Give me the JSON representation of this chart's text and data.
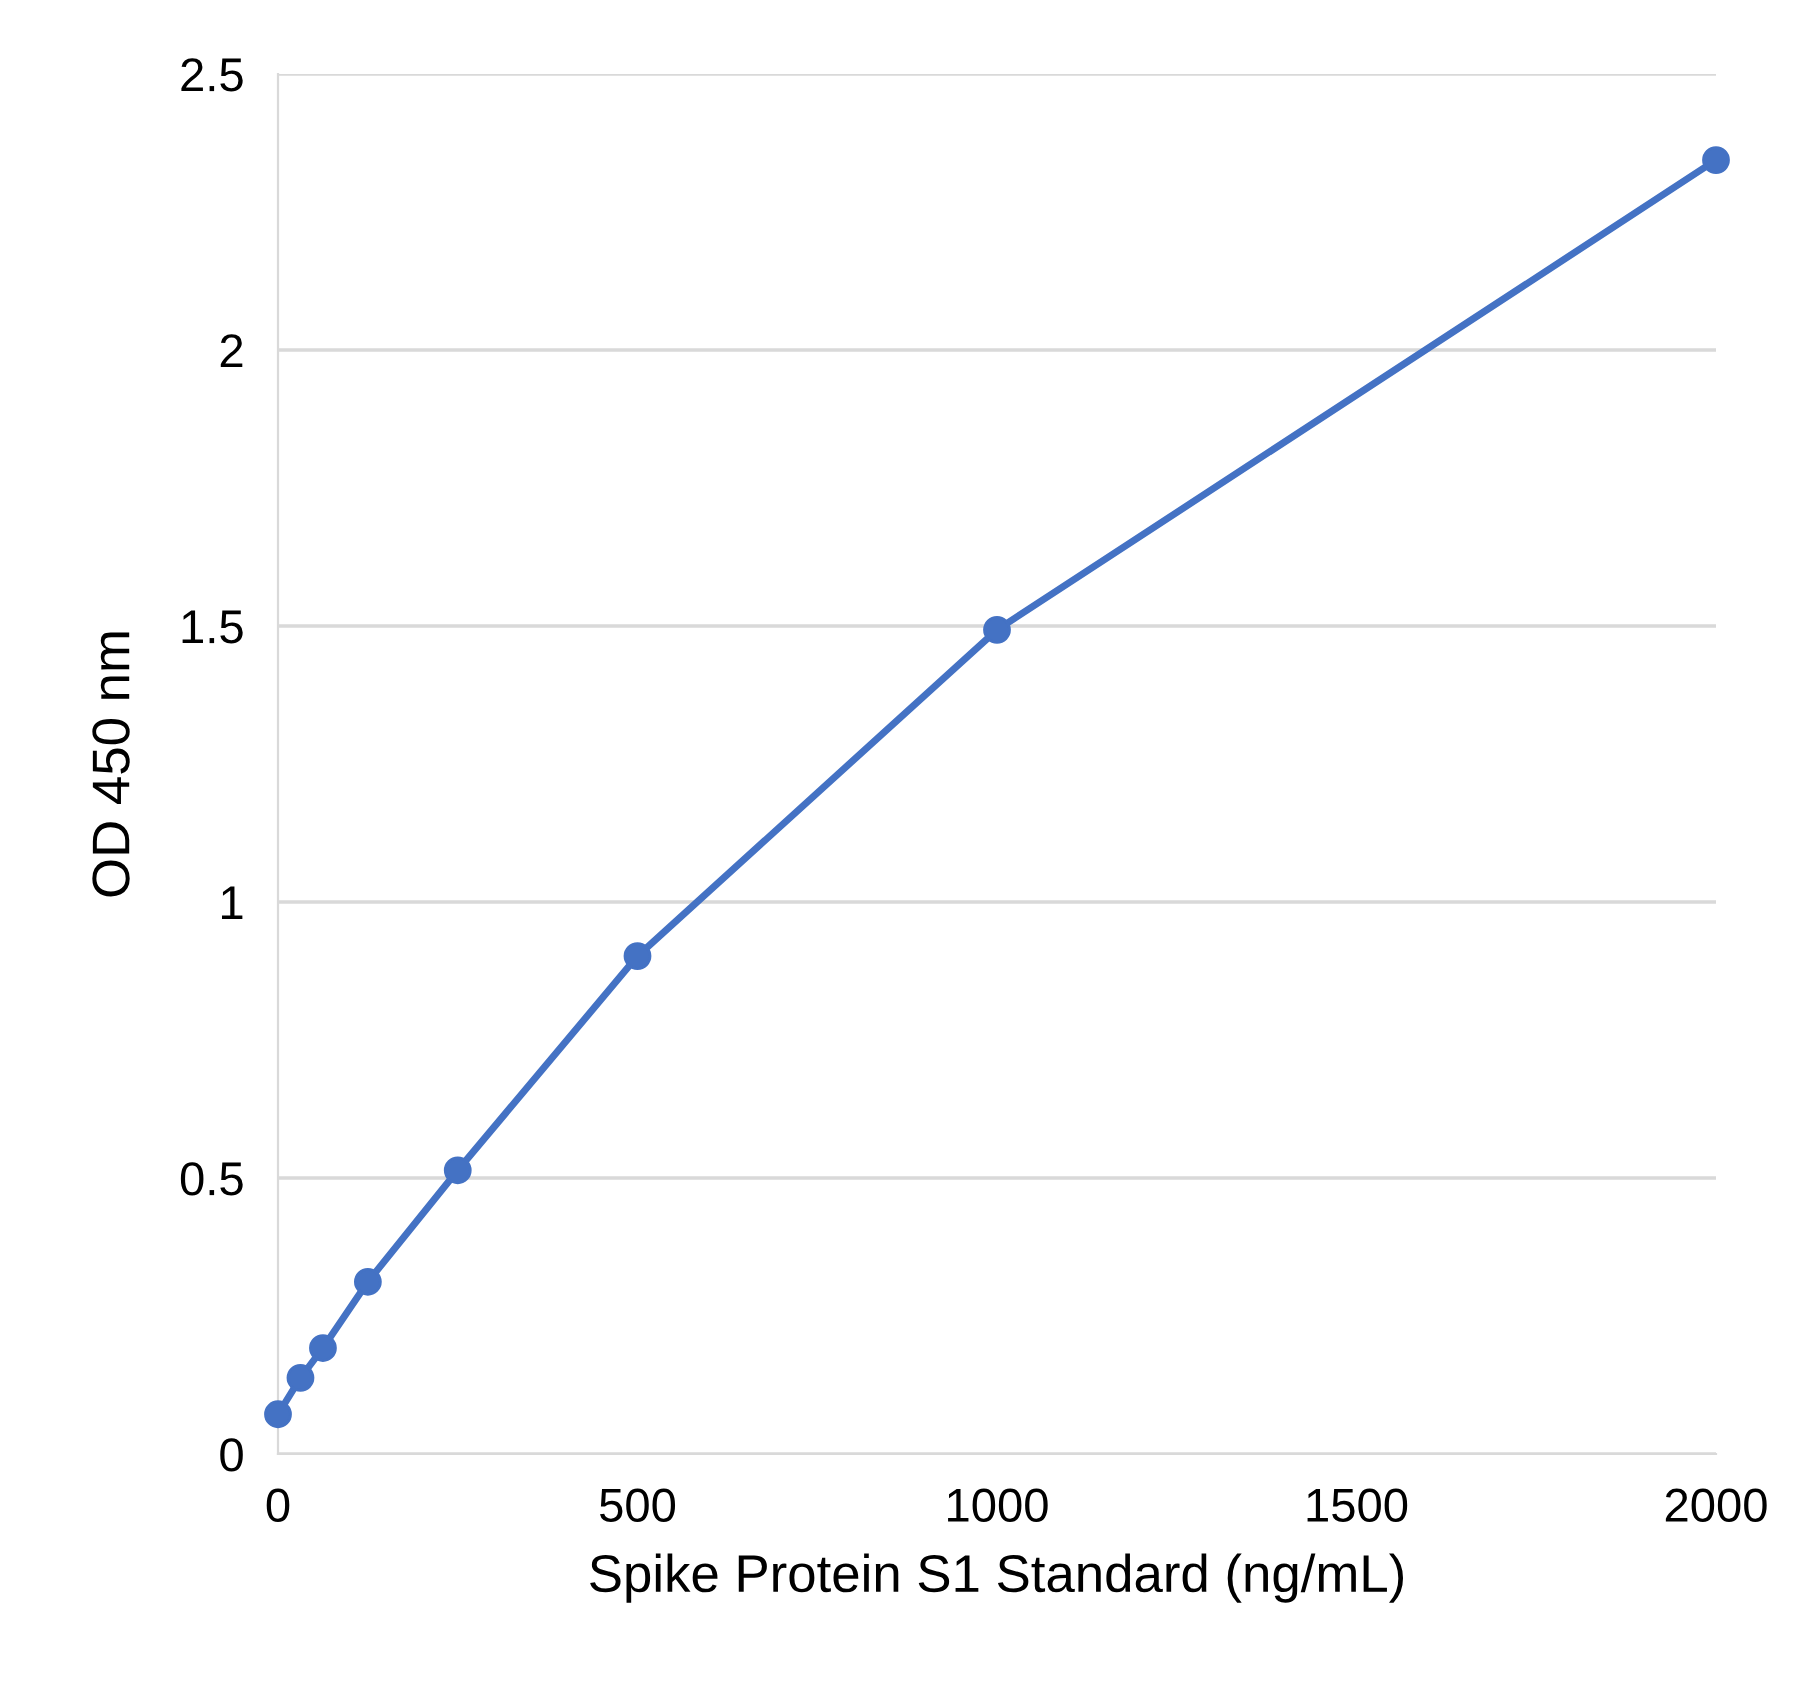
{
  "chart_data": {
    "type": "line",
    "xlabel": "Spike Protein S1 Standard (ng/mL)",
    "ylabel": "OD 450 nm",
    "x": [
      0,
      31.25,
      62.5,
      125,
      250,
      500,
      1000,
      2000
    ],
    "series": [
      {
        "color": "#4472c4",
        "values": [
          0.072,
          0.138,
          0.192,
          0.312,
          0.514,
          0.902,
          1.493,
          2.344
        ]
      }
    ],
    "xlim": [
      0,
      2000
    ],
    "xticks": [
      0,
      500,
      1000,
      1500,
      2000
    ],
    "ylim": [
      0,
      2.5
    ],
    "yticks": [
      0,
      0.5,
      1,
      1.5,
      2,
      2.5
    ],
    "grid": "y",
    "marker": "circle",
    "line_style": "solid",
    "legend": false
  }
}
